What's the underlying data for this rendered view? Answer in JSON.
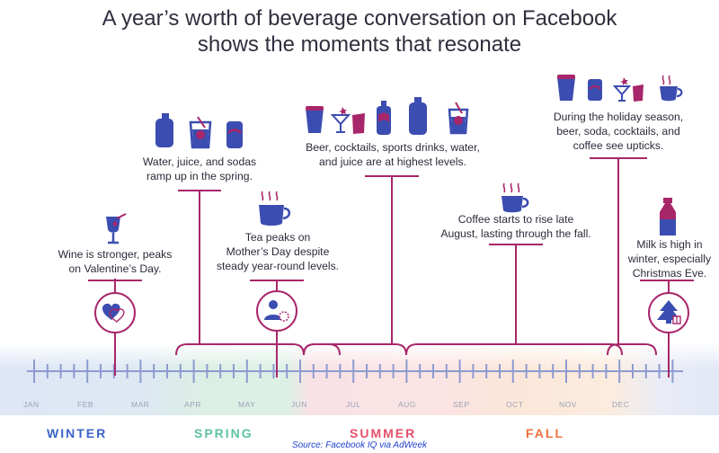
{
  "title": {
    "line1": "A year’s worth of beverage conversation on Facebook",
    "line2": "shows the moments that resonate"
  },
  "notes": {
    "wine": [
      "Wine is stronger, peaks",
      "on Valentine’s Day."
    ],
    "spring": [
      "Water, juice, and sodas",
      "ramp up in the spring."
    ],
    "tea": [
      "Tea peaks on",
      "Mother’s Day despite",
      "steady year-round levels."
    ],
    "summer": [
      "Beer, cocktails, sports drinks, water,",
      "and juice are at highest levels."
    ],
    "coffee": [
      "Coffee starts to rise late",
      "August, lasting through the fall."
    ],
    "holiday": [
      "During the holiday season,",
      "beer, soda, cocktails, and",
      "coffee see upticks."
    ],
    "milk": [
      "Milk is high in",
      "winter, especially",
      "Christmas Eve."
    ]
  },
  "months": [
    "JAN",
    "FEB",
    "MAR",
    "APR",
    "MAY",
    "JUN",
    "JUL",
    "AUG",
    "SEP",
    "OCT",
    "NOV",
    "DEC"
  ],
  "seasons": [
    {
      "label": "WINTER",
      "color": "#3a63c9"
    },
    {
      "label": "SPRING",
      "color": "#5ec2a0"
    },
    {
      "label": "SUMMER",
      "color": "#e5506d"
    },
    {
      "label": "FALL",
      "color": "#ef6f3c"
    }
  ],
  "source": "Source: Facebook IQ via AdWeek",
  "colors": {
    "navy": "#3b4db0",
    "magenta": "#a8266a",
    "axis": "#8d9bd0"
  },
  "icons": [
    "wine-glass-icon",
    "heart-icon",
    "water-bottle-icon",
    "juice-glass-icon",
    "soda-can-icon",
    "coffee-cup-icon",
    "mother-icon",
    "beer-glass-icon",
    "cocktail-icon",
    "milk-bottle-icon",
    "christmas-tree-icon"
  ]
}
